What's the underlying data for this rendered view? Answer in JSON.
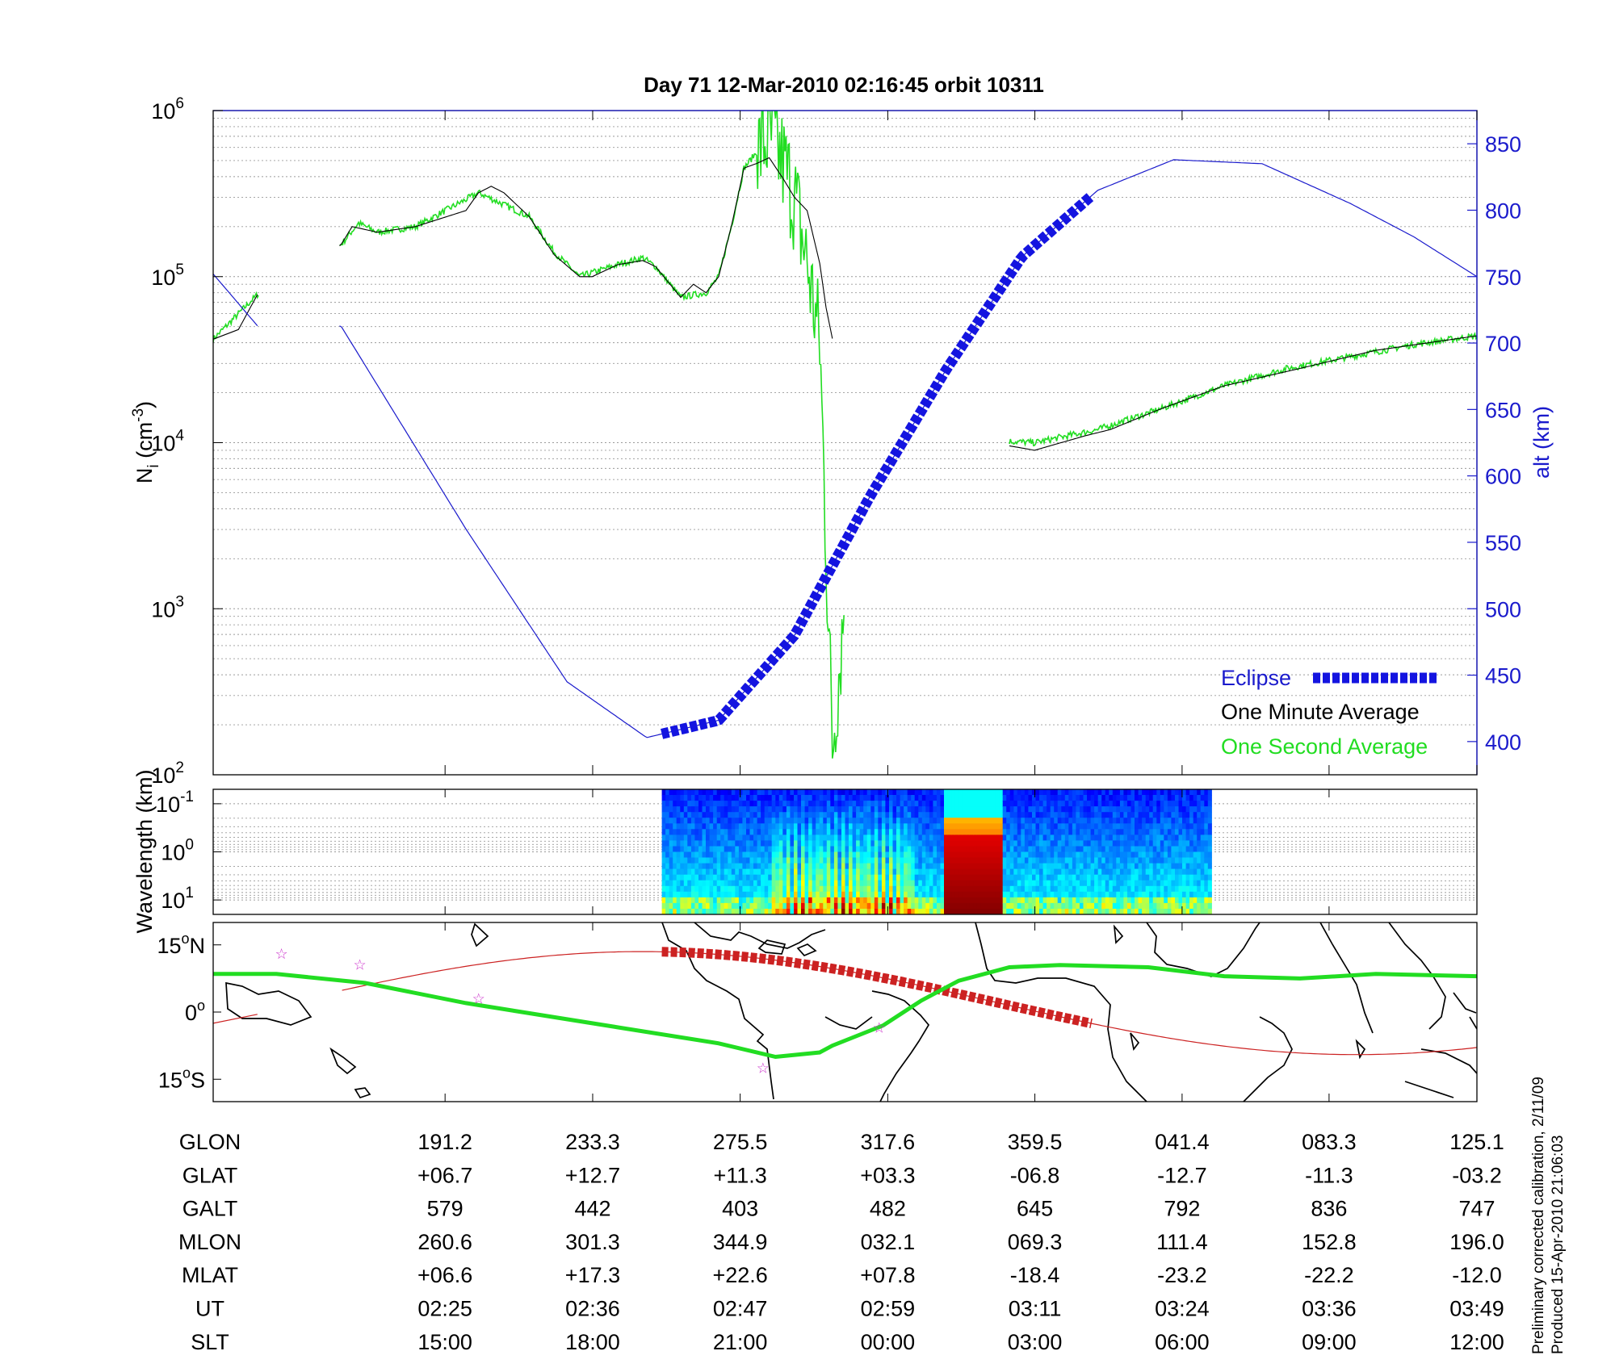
{
  "title": "Day 71  12-Mar-2010 02:16:45   orbit 10311",
  "footer": {
    "line1": "Preliminary corrected calibration, 2/11/09",
    "line2": "Produced 15-Apr-2010 21:06:03"
  },
  "colors": {
    "one_minute": "#000000",
    "one_second": "#22dd22",
    "altitude": "#1a1acc",
    "eclipse": "#1414e0",
    "track": "#cc2222",
    "equator": "#22dd22",
    "stars": "#cc33cc"
  },
  "chart_data": [
    {
      "type": "line",
      "panel": "density",
      "title": "Day 71  12-Mar-2010 02:16:45   orbit 10311",
      "ylabel": "N_i (cm^-3)",
      "ylabel_main": "N",
      "ylabel_sub": "i",
      "ylabel_rest": " (cm",
      "ylabel_sup": "-3",
      "ylabel_close": ")",
      "y_scale": "log",
      "ylim": [
        100,
        1000000
      ],
      "y_ticks": [
        {
          "base": "10",
          "exp": "2"
        },
        {
          "base": "10",
          "exp": "3"
        },
        {
          "base": "10",
          "exp": "4"
        },
        {
          "base": "10",
          "exp": "5"
        },
        {
          "base": "10",
          "exp": "6"
        }
      ],
      "y2label": "alt (km)",
      "y2lim": [
        375,
        875
      ],
      "y2_ticks": [
        "400",
        "450",
        "500",
        "550",
        "600",
        "650",
        "700",
        "750",
        "800",
        "850"
      ],
      "x_ticks_ut": [
        "02:25",
        "02:36",
        "02:47",
        "02:59",
        "03:11",
        "03:24",
        "03:36",
        "03:49"
      ],
      "grid": true,
      "legend": {
        "position": "bottom-right",
        "eclipse": "Eclipse",
        "one_minute": "One Minute Average",
        "one_second": "One Second Average"
      },
      "series": [
        {
          "name": "One Minute Average",
          "x_frac": [
            0.0,
            0.02,
            0.035,
            0.101,
            0.11,
            0.13,
            0.16,
            0.2,
            0.21,
            0.22,
            0.23,
            0.25,
            0.27,
            0.29,
            0.3,
            0.32,
            0.34,
            0.35,
            0.37,
            0.38,
            0.39,
            0.4,
            0.41,
            0.42,
            0.43,
            0.44,
            0.45,
            0.46,
            0.47,
            0.48,
            0.485,
            0.5,
            0.52,
            0.53,
            0.54,
            0.56,
            0.6,
            0.65,
            0.69,
            0.71,
            0.75,
            0.8,
            0.86,
            0.92,
            1.0
          ],
          "values": [
            42000,
            48000,
            78000,
            155000,
            200000,
            185000,
            200000,
            250000,
            320000,
            350000,
            320000,
            230000,
            135000,
            100000,
            100000,
            118000,
            125000,
            115000,
            75000,
            90000,
            80000,
            100000,
            200000,
            450000,
            480000,
            520000,
            400000,
            300000,
            250000,
            120000,
            65000,
            18000,
            9000,
            8500,
            8500,
            10000,
            10500,
            9000,
            11000,
            12000,
            16000,
            22000,
            28000,
            36000,
            44000
          ]
        },
        {
          "name": "One Second Average",
          "x_frac": [
            0.0,
            0.035,
            0.101,
            0.115,
            0.13,
            0.16,
            0.21,
            0.25,
            0.27,
            0.29,
            0.32,
            0.34,
            0.35,
            0.37,
            0.39,
            0.4,
            0.41,
            0.42,
            0.44,
            0.45,
            0.46,
            0.47,
            0.48,
            0.49,
            0.51,
            0.53,
            0.55,
            0.57,
            0.6,
            0.65,
            0.7,
            0.75,
            0.8,
            0.85,
            0.9,
            0.95,
            1.0
          ],
          "values": [
            42000,
            78000,
            155000,
            210000,
            185000,
            200000,
            320000,
            230000,
            140000,
            100000,
            118000,
            130000,
            115000,
            75000,
            80000,
            100000,
            200000,
            450000,
            700000,
            500000,
            300000,
            120000,
            40000,
            150,
            9000,
            8500,
            9000,
            10000,
            10500,
            10000,
            12000,
            16000,
            22000,
            28000,
            33000,
            39000,
            44000
          ]
        },
        {
          "name": "altitude",
          "x_frac": [
            0.0,
            0.035,
            0.101,
            0.2,
            0.28,
            0.343,
            0.4,
            0.46,
            0.52,
            0.58,
            0.64,
            0.7,
            0.76,
            0.83,
            0.9,
            0.95,
            1.0
          ],
          "values": [
            752,
            713,
            713,
            560,
            445,
            403,
            416,
            480,
            585,
            680,
            765,
            815,
            838,
            835,
            805,
            780,
            750
          ]
        }
      ],
      "eclipse_x_frac": [
        0.355,
        0.695
      ]
    },
    {
      "type": "heatmap",
      "panel": "spectrogram",
      "ylabel": "Wavelength (km)",
      "y_ticks": [
        {
          "base": "10",
          "exp": "-1"
        },
        {
          "base": "10",
          "exp": "0"
        },
        {
          "base": "10",
          "exp": "1"
        }
      ],
      "colorscale": "jet",
      "data_x_frac": [
        0.355,
        0.79
      ]
    },
    {
      "type": "map",
      "panel": "ground-track",
      "y_ticks": [
        {
          "value": "15",
          "deg": "o",
          "hemi": "N"
        },
        {
          "value": "0",
          "deg": "o",
          "hemi": ""
        },
        {
          "value": "15",
          "deg": "o",
          "hemi": "S"
        }
      ],
      "ylim": [
        -20,
        20
      ]
    },
    {
      "type": "table",
      "panel": "ephemeris",
      "rows": [
        {
          "label": "GLON",
          "values": [
            "191.2",
            "233.3",
            "275.5",
            "317.6",
            "359.5",
            "041.4",
            "083.3",
            "125.1"
          ]
        },
        {
          "label": "GLAT",
          "values": [
            "+06.7",
            "+12.7",
            "+11.3",
            "+03.3",
            "-06.8",
            "-12.7",
            "-11.3",
            "-03.2"
          ]
        },
        {
          "label": "GALT",
          "values": [
            "579",
            "442",
            "403",
            "482",
            "645",
            "792",
            "836",
            "747"
          ]
        },
        {
          "label": "MLON",
          "values": [
            "260.6",
            "301.3",
            "344.9",
            "032.1",
            "069.3",
            "111.4",
            "152.8",
            "196.0"
          ]
        },
        {
          "label": "MLAT",
          "values": [
            "+06.6",
            "+17.3",
            "+22.6",
            "+07.8",
            "-18.4",
            "-23.2",
            "-22.2",
            "-12.0"
          ]
        },
        {
          "label": "UT",
          "values": [
            "02:25",
            "02:36",
            "02:47",
            "02:59",
            "03:11",
            "03:24",
            "03:36",
            "03:49"
          ]
        },
        {
          "label": "SLT",
          "values": [
            "15:00",
            "18:00",
            "21:00",
            "00:00",
            "03:00",
            "06:00",
            "09:00",
            "12:00"
          ]
        }
      ]
    }
  ]
}
